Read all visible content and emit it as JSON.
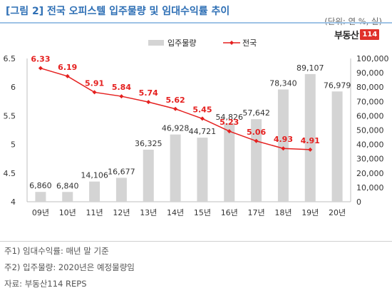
{
  "header": {
    "title": "[그림 2] 전국 오피스텔 입주물량 및 임대수익률 추이",
    "unit": "(단위: 연 %, 실)"
  },
  "logo": {
    "text": "부동산",
    "box": "114"
  },
  "colors": {
    "bars": "#d4d4d4",
    "line": "#e5201f",
    "axis_text": "#333333"
  },
  "chart_data": {
    "type": "bar",
    "title": "",
    "categories": [
      "09년",
      "10년",
      "11년",
      "12년",
      "13년",
      "14년",
      "15년",
      "16년",
      "17년",
      "18년",
      "19년",
      "20년"
    ],
    "legend": {
      "placement": "top-center"
    },
    "series": [
      {
        "name": "입주물량",
        "type": "bar",
        "axis": "right",
        "values": [
          6860,
          6840,
          14106,
          16677,
          36325,
          46928,
          44721,
          54826,
          57642,
          78340,
          89107,
          76979
        ],
        "labels": [
          "6,860",
          "6,840",
          "14,106",
          "16,677",
          "36,325",
          "46,928",
          "44,721",
          "54,826",
          "57,642",
          "78,340",
          "89,107",
          "76,979"
        ]
      },
      {
        "name": "전국",
        "type": "line",
        "axis": "left",
        "values": [
          6.33,
          6.19,
          5.91,
          5.84,
          5.74,
          5.62,
          5.45,
          5.23,
          5.06,
          4.93,
          4.91,
          null
        ],
        "labels": [
          "6.33",
          "6.19",
          "5.91",
          "5.84",
          "5.74",
          "5.62",
          "5.45",
          "5.23",
          "5.06",
          "4.93",
          "4.91",
          ""
        ]
      }
    ],
    "y_left": {
      "min": 4,
      "max": 6.5,
      "ticks": [
        "4",
        "4.5",
        "5",
        "5.5",
        "6",
        "6.5"
      ]
    },
    "y_right": {
      "min": 0,
      "max": 100000,
      "ticks": [
        "0",
        "10,000",
        "20,000",
        "30,000",
        "40,000",
        "50,000",
        "60,000",
        "70,000",
        "80,000",
        "90,000",
        "100,000"
      ]
    },
    "grid": false
  },
  "notes": [
    "주1) 임대수익률: 매년 말 기준",
    "주2) 입주물량: 2020년은 예정물량임",
    "자료: 부동산114 REPS"
  ]
}
